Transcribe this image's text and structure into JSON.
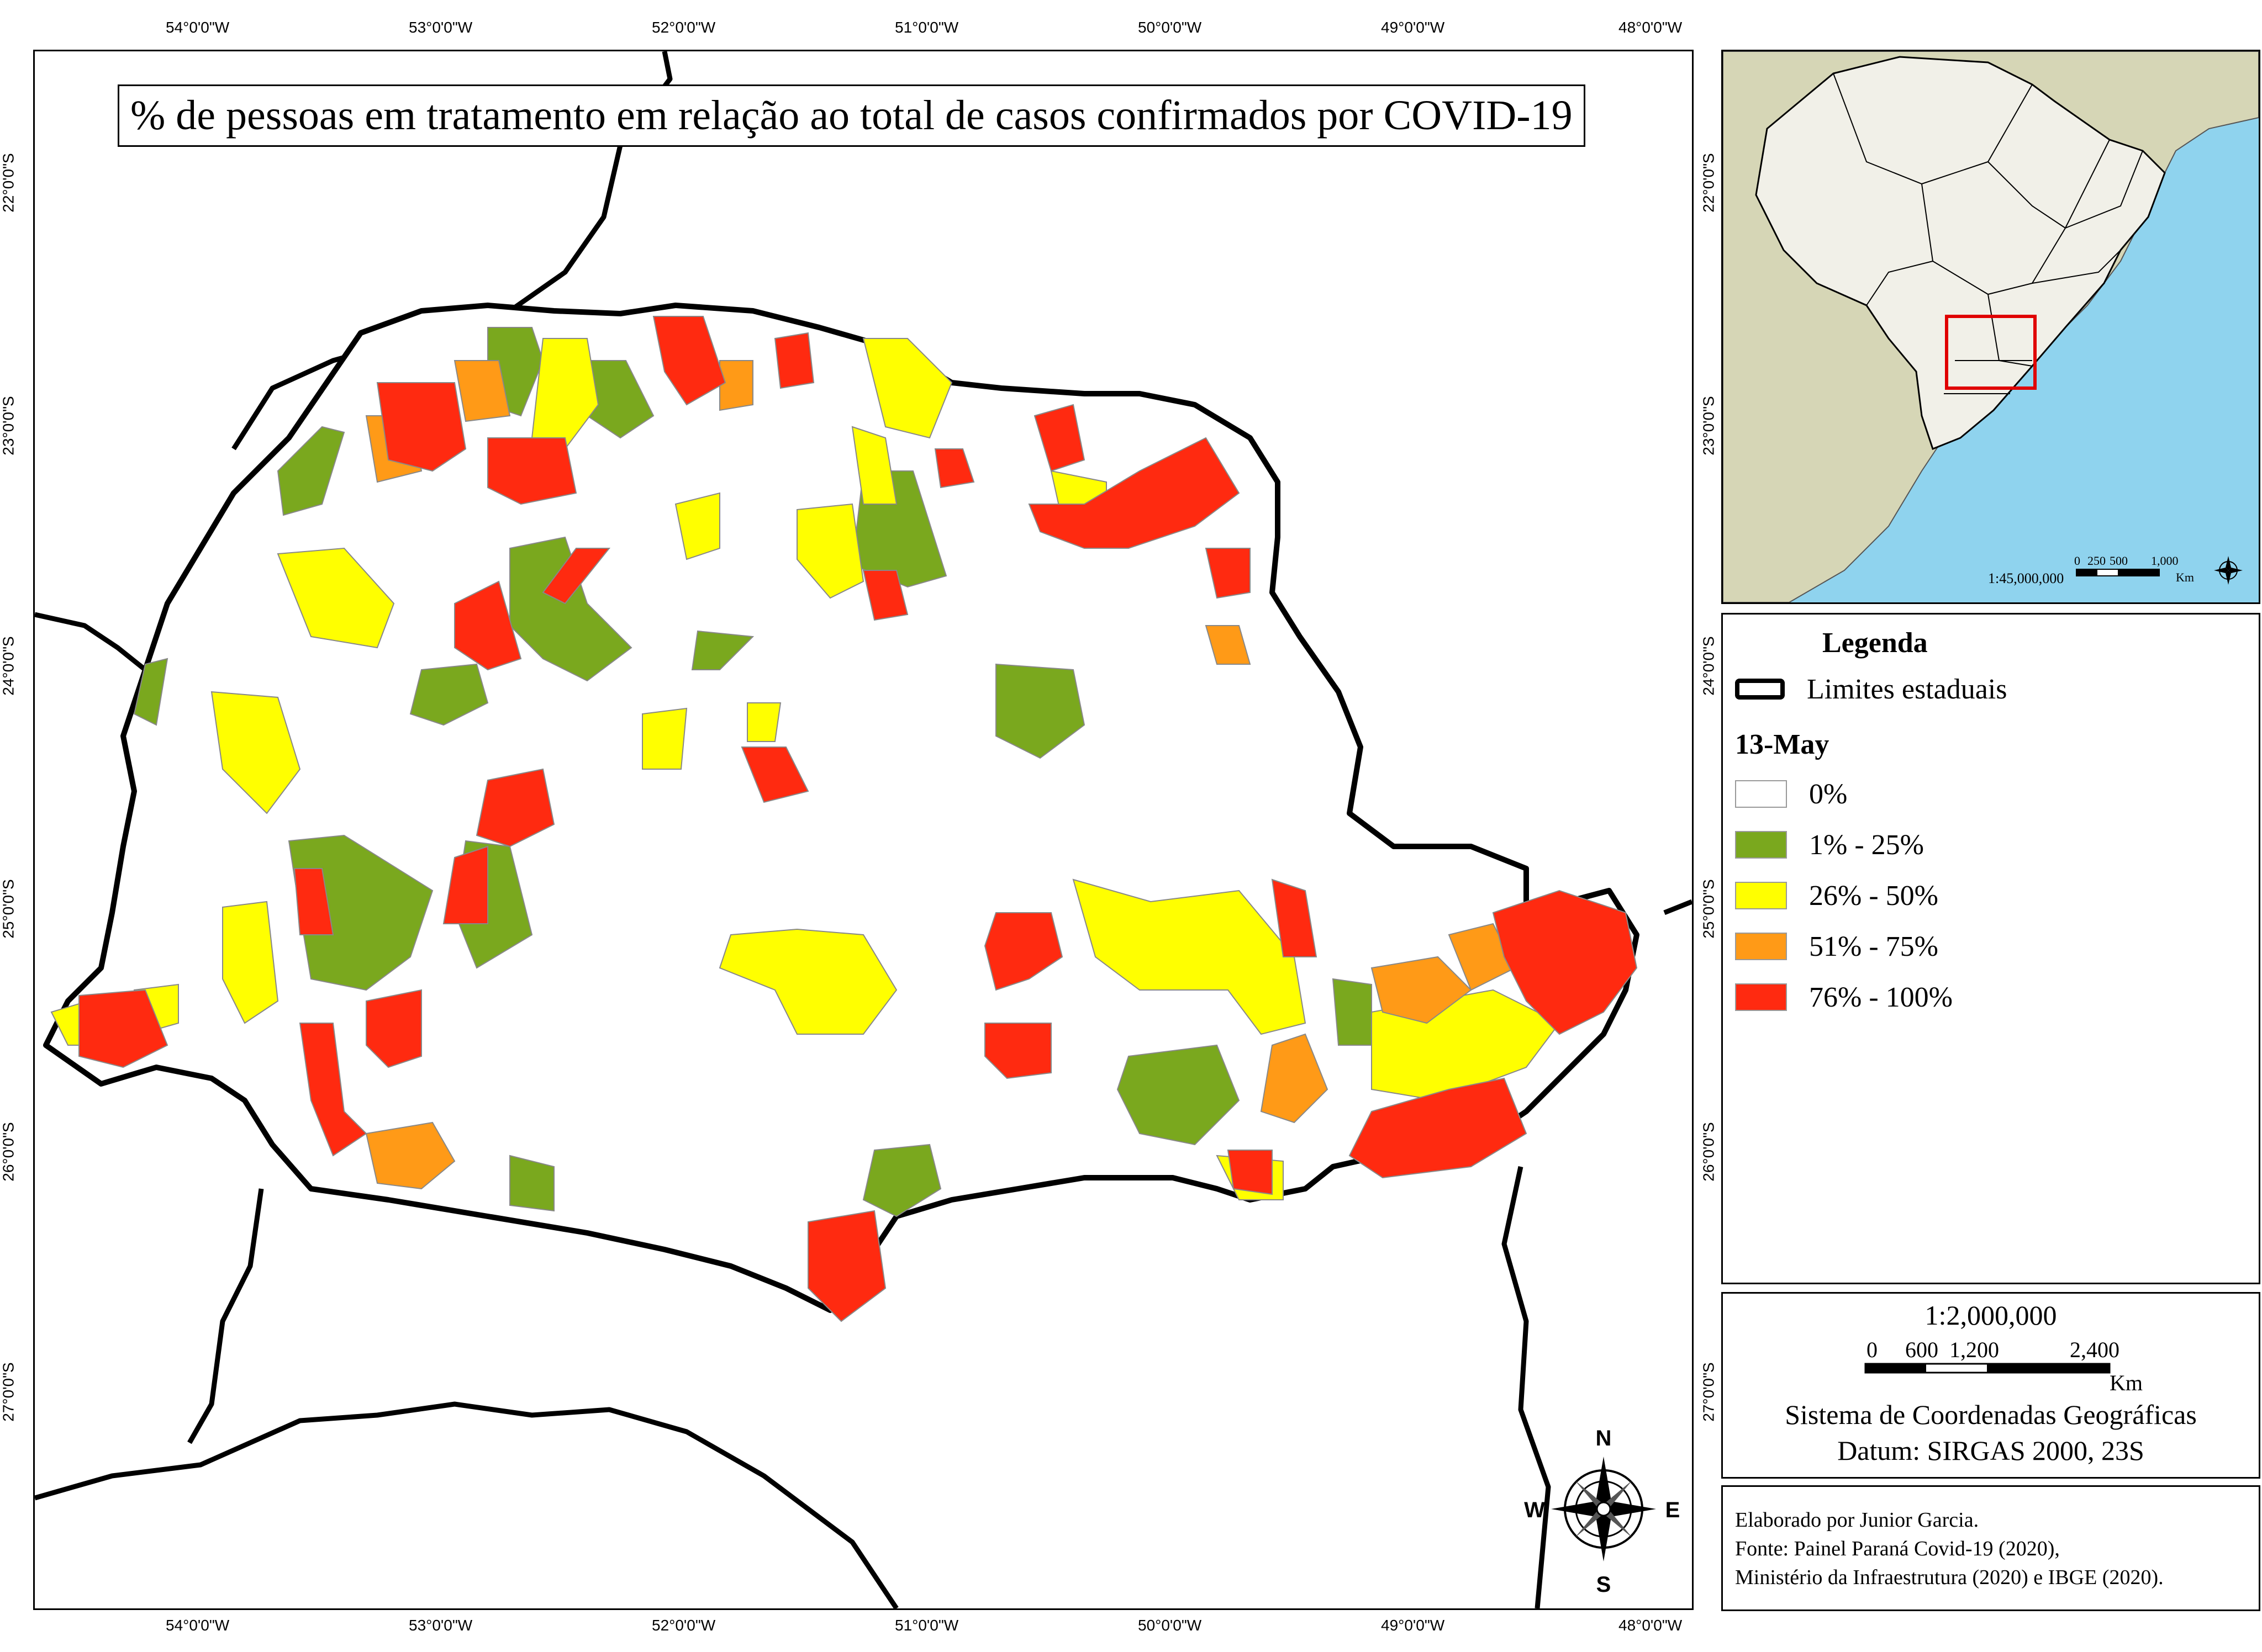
{
  "map": {
    "title": "% de pessoas em tratamento em relação ao total de casos confirmados por COVID-19",
    "lon_ticks": [
      "54°0'0\"W",
      "53°0'0\"W",
      "52°0'0\"W",
      "51°0'0\"W",
      "50°0'0\"W",
      "49°0'0\"W",
      "48°0'0\"W"
    ],
    "lat_ticks": [
      "22°0'0\"S",
      "23°0'0\"S",
      "24°0'0\"S",
      "25°0'0\"S",
      "26°0'0\"S",
      "27°0'0\"S"
    ],
    "compass": {
      "n": "N",
      "s": "S",
      "e": "E",
      "w": "W"
    }
  },
  "inset": {
    "scale_ratio": "1:45,000,000",
    "scale_labels": [
      "0",
      "250",
      "500",
      "1,000"
    ],
    "scale_unit": "Km"
  },
  "legend": {
    "title": "Legenda",
    "boundary_label": "Limites estaduais",
    "date_label": "13-May",
    "classes": [
      {
        "label": "0%",
        "color": "#ffffff"
      },
      {
        "label": "1% - 25%",
        "color": "#7aa81e"
      },
      {
        "label": "26% - 50%",
        "color": "#ffff00"
      },
      {
        "label": "51% - 75%",
        "color": "#ff9a17"
      },
      {
        "label": "76% - 100%",
        "color": "#ff2a10"
      }
    ]
  },
  "scale": {
    "ratio": "1:2,000,000",
    "labels": [
      "0",
      "600",
      "1,200",
      "2,400"
    ],
    "unit": "Km",
    "coord_system": "Sistema de Coordenadas Geográficas",
    "datum": "Datum: SIRGAS 2000, 23S"
  },
  "credits": {
    "author": "Elaborado por Junior Garcia.",
    "source1": "Fonte: Painel Paraná Covid-19 (2020),",
    "source2": "Ministério da Infraestrutura (2020) e IBGE (2020)."
  }
}
